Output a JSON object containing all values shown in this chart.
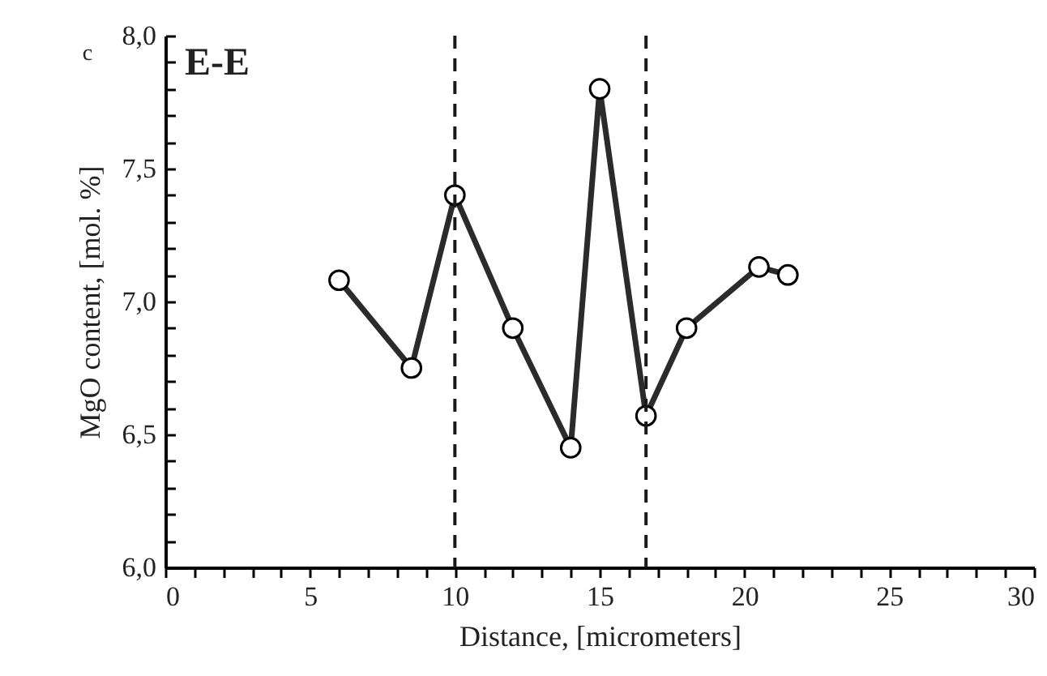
{
  "chart_data": {
    "type": "line",
    "title": "E-E",
    "annotations": [
      "c"
    ],
    "xlabel": "Distance, [micrometers]",
    "ylabel": "MgO content, [mol. %]",
    "x": [
      6,
      8.5,
      10,
      12,
      14,
      15,
      16.6,
      18,
      20.5,
      21.5
    ],
    "series": [
      {
        "color": "#2b2b2b",
        "values": [
          7.08,
          6.75,
          7.4,
          6.9,
          6.45,
          7.8,
          6.57,
          6.9,
          7.13,
          7.1
        ]
      }
    ],
    "marker": "circle",
    "line_style": "solid",
    "xlim": [
      0,
      30
    ],
    "ylim": [
      6,
      8
    ],
    "xticks": [
      0,
      {
        "value": 1,
        "label": null
      },
      {
        "value": 2,
        "label": null
      },
      {
        "value": 3,
        "label": null
      },
      {
        "value": 4,
        "label": null
      },
      5,
      {
        "value": 6,
        "label": null
      },
      {
        "value": 7,
        "label": null
      },
      {
        "value": 8,
        "label": null
      },
      {
        "value": 9,
        "label": null
      },
      10,
      {
        "value": 11,
        "label": null
      },
      {
        "value": 12,
        "label": null
      },
      {
        "value": 13,
        "label": null
      },
      {
        "value": 14,
        "label": null
      },
      15,
      {
        "value": 16,
        "label": null
      },
      {
        "value": 17,
        "label": null
      },
      {
        "value": 18,
        "label": null
      },
      {
        "value": 19,
        "label": null
      },
      20,
      {
        "value": 21,
        "label": null
      },
      {
        "value": 22,
        "label": null
      },
      {
        "value": 23,
        "label": null
      },
      {
        "value": 24,
        "label": null
      },
      25,
      {
        "value": 26,
        "label": null
      },
      {
        "value": 27,
        "label": null
      },
      {
        "value": 28,
        "label": null
      },
      {
        "value": 29,
        "label": null
      },
      30
    ],
    "yticks": [
      {
        "value": 6,
        "label": "6,0"
      },
      {
        "value": 6.1,
        "label": null
      },
      {
        "value": 6.2,
        "label": null
      },
      {
        "value": 6.3,
        "label": null
      },
      {
        "value": 6.4,
        "label": null
      },
      {
        "value": 6.5,
        "label": "6,5"
      },
      {
        "value": 6.6,
        "label": null
      },
      {
        "value": 6.7,
        "label": null
      },
      {
        "value": 6.8,
        "label": null
      },
      {
        "value": 6.9,
        "label": null
      },
      {
        "value": 7,
        "label": "7,0"
      },
      {
        "value": 7.1,
        "label": null
      },
      {
        "value": 7.2,
        "label": null
      },
      {
        "value": 7.3,
        "label": null
      },
      {
        "value": 7.4,
        "label": null
      },
      {
        "value": 7.5,
        "label": "7,5"
      },
      {
        "value": 7.6,
        "label": null
      },
      {
        "value": 7.7,
        "label": null
      },
      {
        "value": 7.8,
        "label": null
      },
      {
        "value": 7.9,
        "label": null
      },
      {
        "value": 8,
        "label": "8,0"
      }
    ],
    "ref_lines": [
      {
        "axis": "x",
        "value": 10,
        "line_style": "dashed",
        "color": "#1a1a1a"
      },
      {
        "axis": "x",
        "value": 16.6,
        "line_style": "dashed",
        "color": "#1a1a1a"
      }
    ]
  }
}
